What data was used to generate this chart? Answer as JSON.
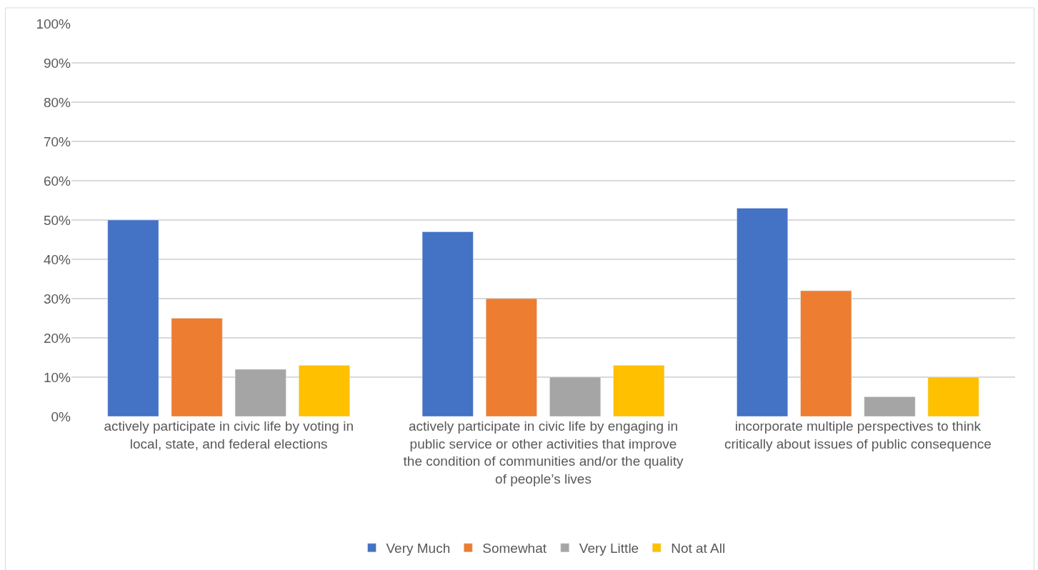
{
  "chart_data": {
    "type": "bar",
    "categories": [
      "actively participate in civic life by voting in local, state, and federal elections",
      "actively participate in civic life by engaging in public service or other activities that improve the condition of communities and/or the quality of people’s lives",
      "incorporate multiple perspectives to think critically about issues of public consequence"
    ],
    "series": [
      {
        "name": "Very Much",
        "color": "#4472c4",
        "values": [
          50,
          47,
          53
        ]
      },
      {
        "name": "Somewhat",
        "color": "#ed7d31",
        "values": [
          25,
          30,
          32
        ]
      },
      {
        "name": "Very Little",
        "color": "#a5a5a5",
        "values": [
          12,
          10,
          5
        ]
      },
      {
        "name": "Not at All",
        "color": "#ffc000",
        "values": [
          13,
          13,
          10
        ]
      }
    ],
    "ylim": [
      0,
      100
    ],
    "yticks": [
      {
        "value": 0,
        "label": "0%"
      },
      {
        "value": 10,
        "label": "10%"
      },
      {
        "value": 20,
        "label": "20%"
      },
      {
        "value": 30,
        "label": "30%"
      },
      {
        "value": 40,
        "label": "40%"
      },
      {
        "value": 50,
        "label": "50%"
      },
      {
        "value": 60,
        "label": "60%"
      },
      {
        "value": 70,
        "label": "70%"
      },
      {
        "value": 80,
        "label": "80%"
      },
      {
        "value": 90,
        "label": "90%"
      },
      {
        "value": 100,
        "label": "100%"
      }
    ],
    "grid": "y",
    "legend": "bottom"
  }
}
